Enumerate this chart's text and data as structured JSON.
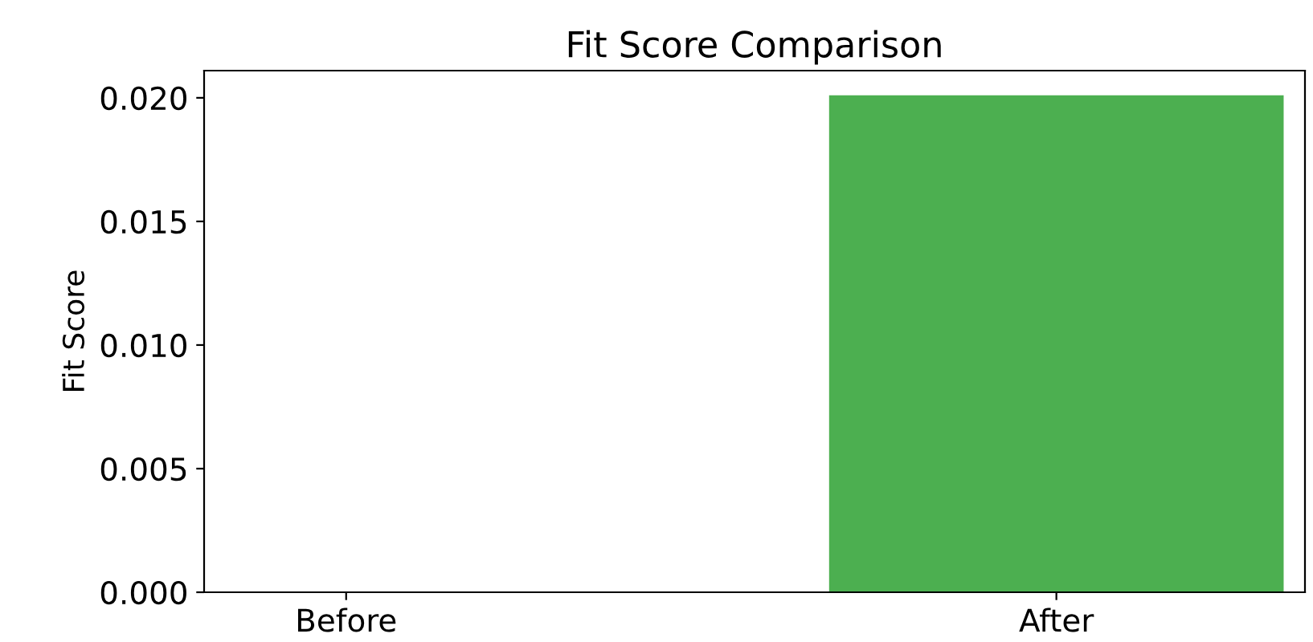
{
  "chart_data": {
    "type": "bar",
    "title": "Fit Score Comparison",
    "ylabel": "Fit Score",
    "categories": [
      "Before",
      "After"
    ],
    "values": [
      0,
      0.0201
    ],
    "colors": [
      "#4caf50",
      "#4caf50"
    ],
    "ylim": [
      0,
      0.0211
    ],
    "yticks": [
      {
        "value": 0,
        "label": "0.000"
      },
      {
        "value": 0.005,
        "label": "0.005"
      },
      {
        "value": 0.01,
        "label": "0.010"
      },
      {
        "value": 0.015,
        "label": "0.015"
      },
      {
        "value": 0.02,
        "label": "0.020"
      }
    ],
    "grid": false
  }
}
